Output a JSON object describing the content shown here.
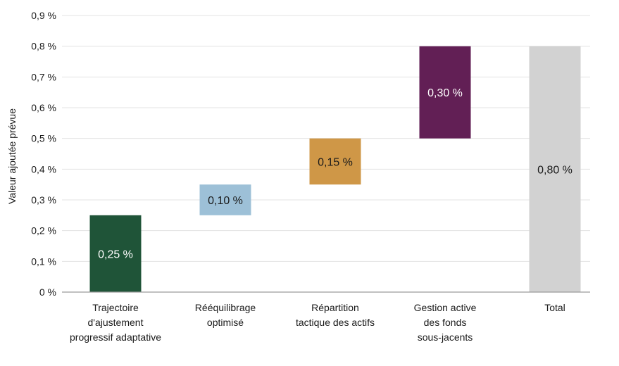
{
  "chart_data": {
    "type": "bar",
    "subtype": "waterfall",
    "ylabel": "Valeur ajoutée prévue",
    "ylim": [
      0,
      0.9
    ],
    "y_ticks": [
      0,
      0.1,
      0.2,
      0.3,
      0.4,
      0.5,
      0.6,
      0.7,
      0.8,
      0.9
    ],
    "y_tick_labels": [
      "0 %",
      "0,1 %",
      "0,2 %",
      "0,3 %",
      "0,4 %",
      "0,5 %",
      "0,6 %",
      "0,7 %",
      "0,8 %",
      "0,9 %"
    ],
    "grid": true,
    "bars": [
      {
        "category": [
          "Trajectoire",
          "d'ajustement",
          "progressif adaptative"
        ],
        "base": 0,
        "value": 0.25,
        "label": "0,25 %",
        "color": "#1f5438",
        "label_color": "#ffffff"
      },
      {
        "category": [
          "Rééquilibrage",
          "optimisé"
        ],
        "base": 0.25,
        "value": 0.1,
        "label": "0,10 %",
        "color": "#9dc0d7",
        "label_color": "#1a1a1a"
      },
      {
        "category": [
          "Répartition",
          "tactique des actifs"
        ],
        "base": 0.35,
        "value": 0.15,
        "label": "0,15 %",
        "color": "#cf9747",
        "label_color": "#1a1a1a"
      },
      {
        "category": [
          "Gestion active",
          "des fonds",
          "sous-jacents"
        ],
        "base": 0.5,
        "value": 0.3,
        "label": "0,30 %",
        "color": "#621f55",
        "label_color": "#ffffff"
      },
      {
        "category": [
          "Total"
        ],
        "base": 0,
        "value": 0.8,
        "label": "0,80 %",
        "color": "#d2d2d2",
        "label_color": "#1a1a1a"
      }
    ]
  }
}
